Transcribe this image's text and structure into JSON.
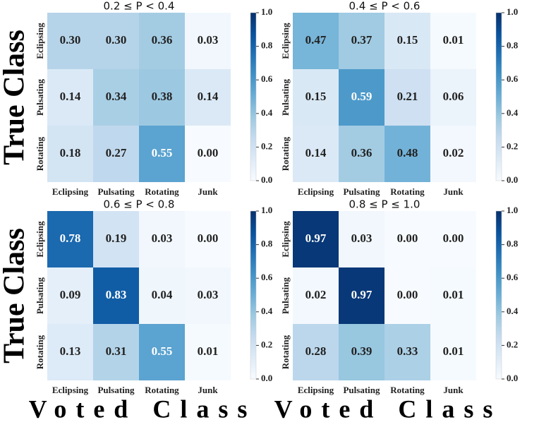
{
  "chart_data": [
    {
      "type": "heatmap",
      "title": "0.2 ≤ P < 0.4",
      "ylabel": "True Class",
      "x_categories": [
        "Eclipsing",
        "Pulsating",
        "Rotating",
        "Junk"
      ],
      "y_categories": [
        "Eclipsing",
        "Pulsating",
        "Rotating"
      ],
      "values": [
        [
          0.3,
          0.3,
          0.36,
          0.03
        ],
        [
          0.14,
          0.34,
          0.38,
          0.14
        ],
        [
          0.18,
          0.27,
          0.55,
          0.0
        ]
      ],
      "value_labels": [
        [
          "0.30",
          "0.30",
          "0.36",
          "0.03"
        ],
        [
          "0.14",
          "0.34",
          "0.38",
          "0.14"
        ],
        [
          "0.18",
          "0.27",
          "0.55",
          "0.00"
        ]
      ],
      "colormap": "Blues",
      "clim": [
        0,
        1
      ],
      "cticks": [
        {
          "value": 0,
          "label": "0.0"
        },
        {
          "value": 0.2,
          "label": "0.2"
        },
        {
          "value": 0.4,
          "label": "0.4"
        },
        {
          "value": 0.6,
          "label": "0.6"
        },
        {
          "value": 0.8,
          "label": "0.8"
        },
        {
          "value": 1,
          "label": "1.0"
        }
      ]
    },
    {
      "type": "heatmap",
      "title": "0.4 ≤ P < 0.6",
      "x_categories": [
        "Eclipsing",
        "Pulsating",
        "Rotating",
        "Junk"
      ],
      "y_categories": [
        "Eclipsing",
        "Pulsating",
        "Rotating"
      ],
      "values": [
        [
          0.47,
          0.37,
          0.15,
          0.01
        ],
        [
          0.15,
          0.59,
          0.21,
          0.06
        ],
        [
          0.14,
          0.36,
          0.48,
          0.02
        ]
      ],
      "value_labels": [
        [
          "0.47",
          "0.37",
          "0.15",
          "0.01"
        ],
        [
          "0.15",
          "0.59",
          "0.21",
          "0.06"
        ],
        [
          "0.14",
          "0.36",
          "0.48",
          "0.02"
        ]
      ],
      "colormap": "Blues",
      "clim": [
        0,
        1
      ],
      "cticks": [
        {
          "value": 0,
          "label": "0.0"
        },
        {
          "value": 0.2,
          "label": "0.2"
        },
        {
          "value": 0.4,
          "label": "0.4"
        },
        {
          "value": 0.6,
          "label": "0.6"
        },
        {
          "value": 0.8,
          "label": "0.8"
        },
        {
          "value": 1,
          "label": "1.0"
        }
      ]
    },
    {
      "type": "heatmap",
      "title": "0.6 ≤ P < 0.8",
      "ylabel": "True Class",
      "xlabel": "Voted Class",
      "x_categories": [
        "Eclipsing",
        "Pulsating",
        "Rotating",
        "Junk"
      ],
      "y_categories": [
        "Eclipsing",
        "Pulsating",
        "Rotating"
      ],
      "values": [
        [
          0.78,
          0.19,
          0.03,
          0.0
        ],
        [
          0.09,
          0.83,
          0.04,
          0.03
        ],
        [
          0.13,
          0.31,
          0.55,
          0.01
        ]
      ],
      "value_labels": [
        [
          "0.78",
          "0.19",
          "0.03",
          "0.00"
        ],
        [
          "0.09",
          "0.83",
          "0.04",
          "0.03"
        ],
        [
          "0.13",
          "0.31",
          "0.55",
          "0.01"
        ]
      ],
      "colormap": "Blues",
      "clim": [
        0,
        1
      ],
      "cticks": [
        {
          "value": 0,
          "label": "0.0"
        },
        {
          "value": 0.2,
          "label": "0.2"
        },
        {
          "value": 0.4,
          "label": "0.4"
        },
        {
          "value": 0.6,
          "label": "0.6"
        },
        {
          "value": 0.8,
          "label": "0.8"
        },
        {
          "value": 1,
          "label": "1.0"
        }
      ]
    },
    {
      "type": "heatmap",
      "title": "0.8 ≤ P ≤ 1.0",
      "xlabel": "Voted Class",
      "x_categories": [
        "Eclipsing",
        "Pulsating",
        "Rotating",
        "Junk"
      ],
      "y_categories": [
        "Eclipsing",
        "Pulsating",
        "Rotating"
      ],
      "values": [
        [
          0.97,
          0.03,
          0.0,
          0.0
        ],
        [
          0.02,
          0.97,
          0.0,
          0.01
        ],
        [
          0.28,
          0.39,
          0.33,
          0.01
        ]
      ],
      "value_labels": [
        [
          "0.97",
          "0.03",
          "0.00",
          "0.00"
        ],
        [
          "0.02",
          "0.97",
          "0.00",
          "0.01"
        ],
        [
          "0.28",
          "0.39",
          "0.33",
          "0.01"
        ]
      ],
      "colormap": "Blues",
      "clim": [
        0,
        1
      ],
      "cticks": [
        {
          "value": 0,
          "label": "0.0"
        },
        {
          "value": 0.2,
          "label": "0.2"
        },
        {
          "value": 0.4,
          "label": "0.4"
        },
        {
          "value": 0.6,
          "label": "0.6"
        },
        {
          "value": 0.8,
          "label": "0.8"
        },
        {
          "value": 1,
          "label": "1.0"
        }
      ]
    }
  ]
}
